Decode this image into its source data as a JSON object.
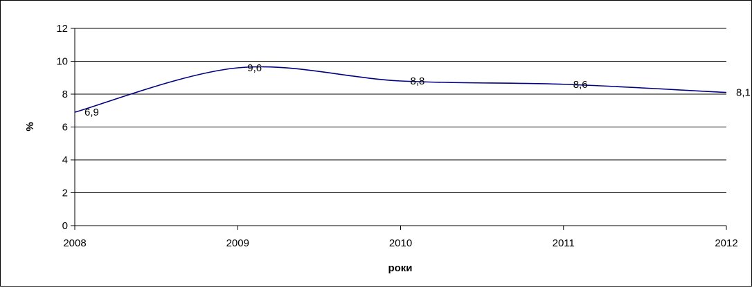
{
  "chart_data": {
    "type": "line",
    "title": "",
    "xlabel": "роки",
    "ylabel": "%",
    "categories": [
      "2008",
      "2009",
      "2010",
      "2011",
      "2012"
    ],
    "series": [
      {
        "values": [
          6.9,
          9.6,
          8.8,
          8.6,
          8.1
        ],
        "labels": [
          "6,9",
          "9,6",
          "8,8",
          "8,6",
          "8,1"
        ],
        "color": "#000080",
        "smooth": true
      }
    ],
    "ylim": [
      0,
      12
    ],
    "yticks": [
      0,
      2,
      4,
      6,
      8,
      10,
      12
    ],
    "ytick_labels": [
      "0",
      "2",
      "4",
      "6",
      "8",
      "10",
      "12"
    ],
    "grid": "horizontal",
    "legend": "none"
  }
}
